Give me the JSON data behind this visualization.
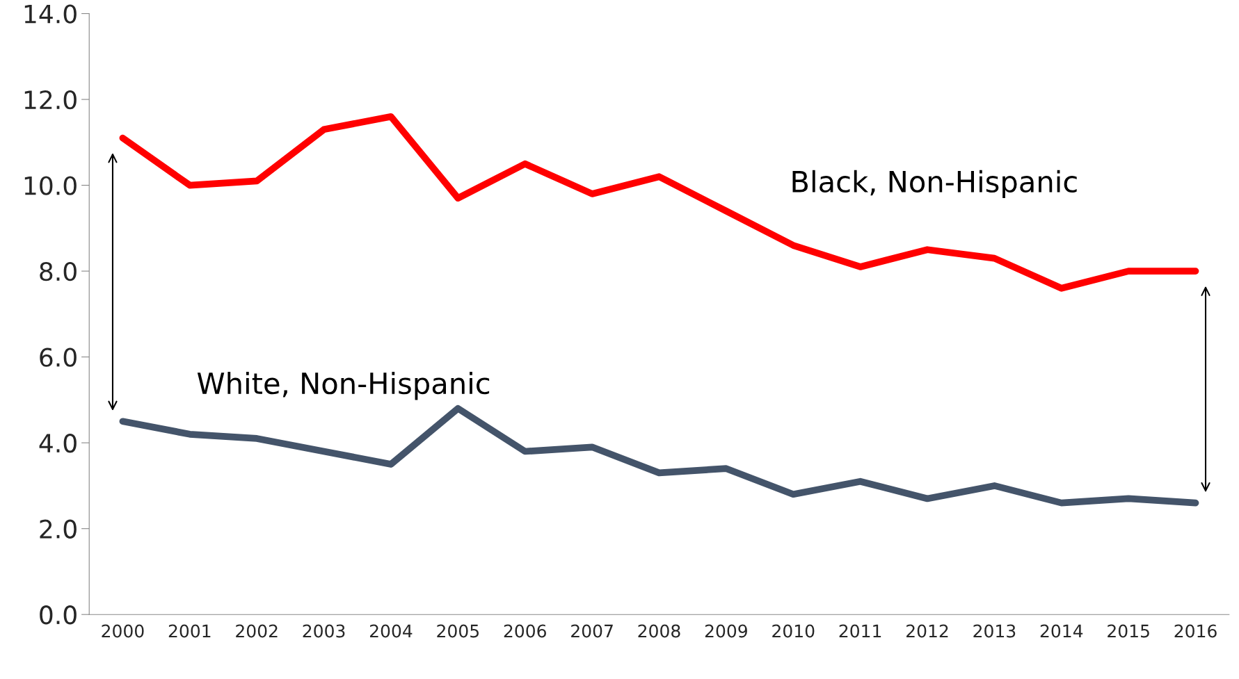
{
  "chart_data": {
    "type": "line",
    "categories": [
      "2000",
      "2001",
      "2002",
      "2003",
      "2004",
      "2005",
      "2006",
      "2007",
      "2008",
      "2009",
      "2010",
      "2011",
      "2012",
      "2013",
      "2014",
      "2015",
      "2016"
    ],
    "series": [
      {
        "name": "Black, Non-Hispanic",
        "color": "#ff0000",
        "values": [
          11.1,
          10.0,
          10.1,
          11.3,
          11.6,
          9.7,
          10.5,
          9.8,
          10.2,
          9.4,
          8.6,
          8.1,
          8.5,
          8.3,
          7.6,
          8.0,
          8.0
        ]
      },
      {
        "name": "White, Non-Hispanic",
        "color": "#44546a",
        "values": [
          4.5,
          4.2,
          4.1,
          3.8,
          3.5,
          4.8,
          3.8,
          3.9,
          3.3,
          3.4,
          2.8,
          3.1,
          2.7,
          3.0,
          2.6,
          2.7,
          2.6
        ]
      }
    ],
    "ylim": [
      0,
      14
    ],
    "yticks": [
      {
        "value": 0,
        "label": "0.0"
      },
      {
        "value": 2,
        "label": "2.0"
      },
      {
        "value": 4,
        "label": "4.0"
      },
      {
        "value": 6,
        "label": "6.0"
      },
      {
        "value": 8,
        "label": "8.0"
      },
      {
        "value": 10,
        "label": "10.0"
      },
      {
        "value": 12,
        "label": "12.0"
      },
      {
        "value": 14,
        "label": "14.0"
      }
    ],
    "grid": false,
    "legend": false,
    "marker": "none",
    "line_style": "solid"
  }
}
